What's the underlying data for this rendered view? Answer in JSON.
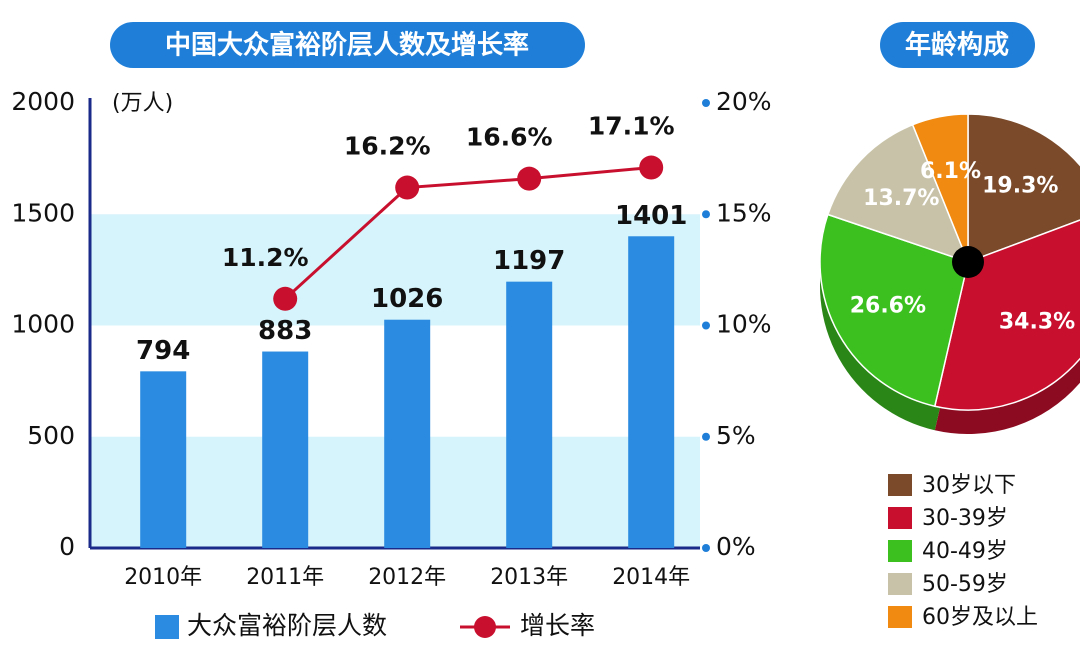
{
  "chart_data": [
    {
      "type": "bar",
      "title": "中国大众富裕阶层人数及增长率",
      "y_label": "(万人)",
      "categories": [
        "2010年",
        "2011年",
        "2012年",
        "2013年",
        "2014年"
      ],
      "series": [
        {
          "name": "大众富裕阶层人数",
          "color": "#2b8be0",
          "values": [
            794,
            883,
            1026,
            1197,
            1401
          ]
        },
        {
          "name": "增长率",
          "type": "line",
          "axis": "y2",
          "color": "#c8102e",
          "values": [
            null,
            11.2,
            16.2,
            16.6,
            17.1
          ],
          "value_labels": [
            null,
            "11.2%",
            "16.2%",
            "16.6%",
            "17.1%"
          ]
        }
      ],
      "ylim": [
        0,
        2000
      ],
      "yticks": [
        0,
        500,
        1000,
        1500,
        2000
      ],
      "y2lim": [
        0,
        20
      ],
      "y2ticks": [
        {
          "value": 0,
          "label": "0%"
        },
        {
          "value": 5,
          "label": "5%"
        },
        {
          "value": 10,
          "label": "10%"
        },
        {
          "value": 15,
          "label": "15%"
        },
        {
          "value": 20,
          "label": "20%"
        }
      ],
      "grid": true
    },
    {
      "type": "pie",
      "title": "年龄构成",
      "categories": [
        "30岁以下",
        "30-39岁",
        "40-49岁",
        "50-59岁",
        "60岁及以上"
      ],
      "values": [
        19.3,
        34.3,
        26.6,
        13.7,
        6.1
      ],
      "value_labels": [
        "19.3%",
        "34.3%",
        "26.6%",
        "13.7%",
        "6.1%"
      ],
      "colors": [
        "#7a4a2a",
        "#c8102e",
        "#3cc020",
        "#c8c3a8",
        "#f08a10"
      ]
    }
  ]
}
